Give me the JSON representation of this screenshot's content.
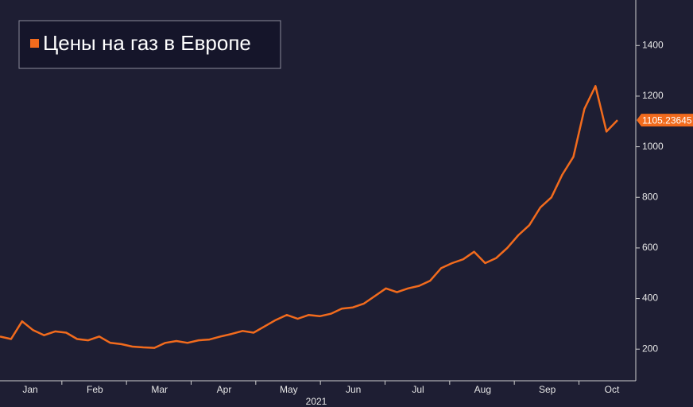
{
  "chart_data": {
    "type": "line",
    "title": "Цены на газ в Европе",
    "x_axis_labels": [
      "Jan",
      "Feb",
      "Mar",
      "Apr",
      "May",
      "Jun",
      "Jul",
      "Aug",
      "Sep",
      "Oct"
    ],
    "year_label": "2021",
    "series": [
      {
        "name": "Цены на газ в Европе",
        "color": "#f26b1d",
        "values": [
          250,
          240,
          310,
          275,
          255,
          270,
          265,
          240,
          235,
          250,
          225,
          220,
          210,
          207,
          205,
          225,
          232,
          225,
          235,
          238,
          250,
          260,
          272,
          265,
          290,
          315,
          335,
          320,
          335,
          330,
          340,
          360,
          365,
          380,
          410,
          440,
          425,
          440,
          450,
          470,
          520,
          540,
          555,
          585,
          540,
          560,
          600,
          650,
          690,
          760,
          800,
          890,
          960,
          1150,
          1240,
          1060,
          1105.23645
        ]
      }
    ],
    "last_value_label": "1105.23645",
    "ylim": [
      75,
      1580
    ],
    "yticks": [
      200,
      400,
      600,
      800,
      1000,
      1200,
      1400
    ],
    "axis_side": "right"
  }
}
